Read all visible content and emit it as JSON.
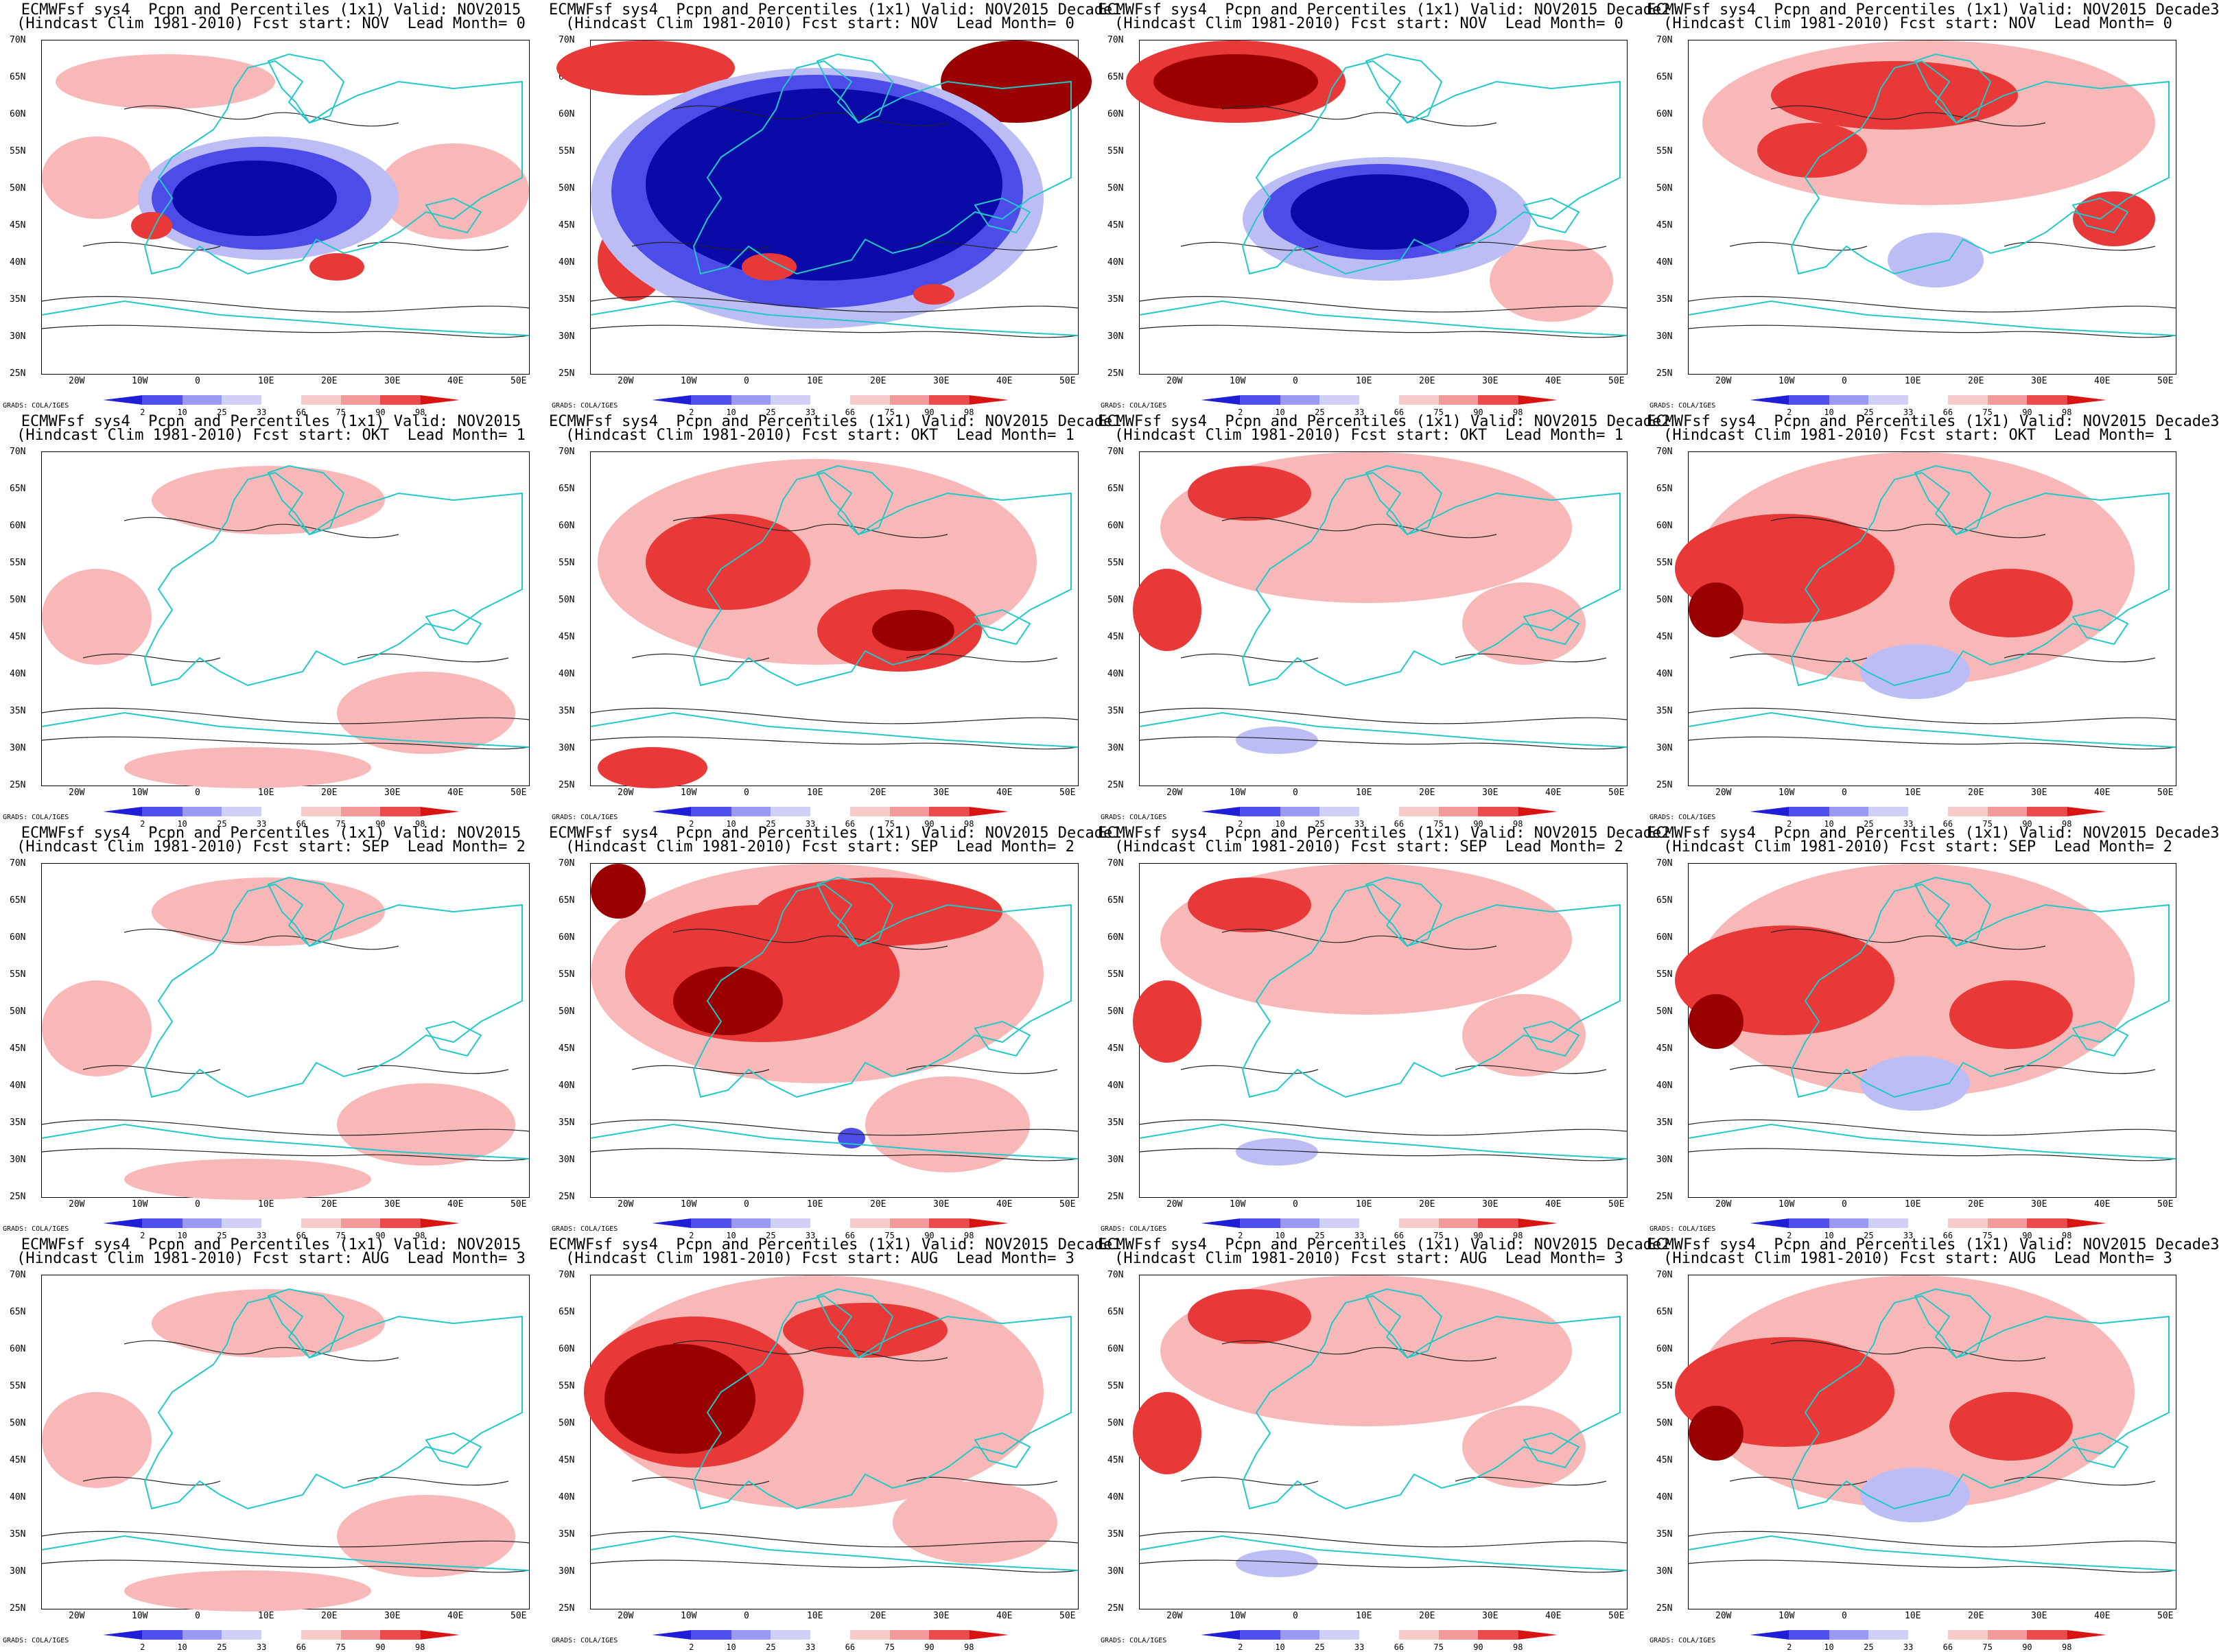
{
  "figure": {
    "title_prefix": "ECMWFsf sys4  Pcpn and Percentiles (1x1) Valid:",
    "hindcast_prefix": "(Hindcast Clim 1981-2010) Fcst start:",
    "lead_prefix": "Lead Month=",
    "credit": "GRADS: COLA/IGES",
    "lat_labels": [
      "70N",
      "65N",
      "60N",
      "55N",
      "50N",
      "45N",
      "40N",
      "35N",
      "30N",
      "25N"
    ],
    "lon_labels": [
      "20W",
      "10W",
      "0",
      "10E",
      "20E",
      "30E",
      "40E",
      "50E"
    ],
    "colorbar_labels": [
      "2",
      "10",
      "25",
      "33",
      "66",
      "75",
      "90",
      "98"
    ],
    "colorbar_colors": [
      "#1f1fd6",
      "#4f4ff0",
      "#9a9af5",
      "#cfcff8",
      "#ffffff",
      "#f8caca",
      "#f39a9a",
      "#ec4b4b",
      "#d91212"
    ],
    "colors": {
      "wet_dark": "#9b0000",
      "wet": "#e83838",
      "wet_light": "#f8b8b8",
      "dry_dark": "#0a0aa8",
      "dry": "#4c4ce8",
      "dry_light": "#bdbdf5",
      "coast": "#22c8c8",
      "contour": "#222222"
    }
  },
  "rows": [
    {
      "fcst_start": "NOV",
      "lead": "0"
    },
    {
      "fcst_start": "OKT",
      "lead": "1"
    },
    {
      "fcst_start": "SEP",
      "lead": "2"
    },
    {
      "fcst_start": "AUG",
      "lead": "3"
    }
  ],
  "cols": [
    {
      "valid": "NOV2015"
    },
    {
      "valid": "NOV2015 Decade1"
    },
    {
      "valid": "NOV2015 Decade2"
    },
    {
      "valid": "NOV2015 Decade3"
    }
  ],
  "panel_patterns": [
    [
      "dry_center",
      "dry_strong",
      "dry_center_wet_north",
      "wet_spotty"
    ],
    [
      "wet_weak",
      "wet_moderate",
      "wet_moderate_n",
      "wet_moderate_w"
    ],
    [
      "wet_weak",
      "wet_strong_north",
      "wet_moderate_n",
      "wet_moderate_w"
    ],
    [
      "wet_weak",
      "wet_strong_west",
      "wet_moderate_n",
      "wet_moderate_w"
    ]
  ]
}
